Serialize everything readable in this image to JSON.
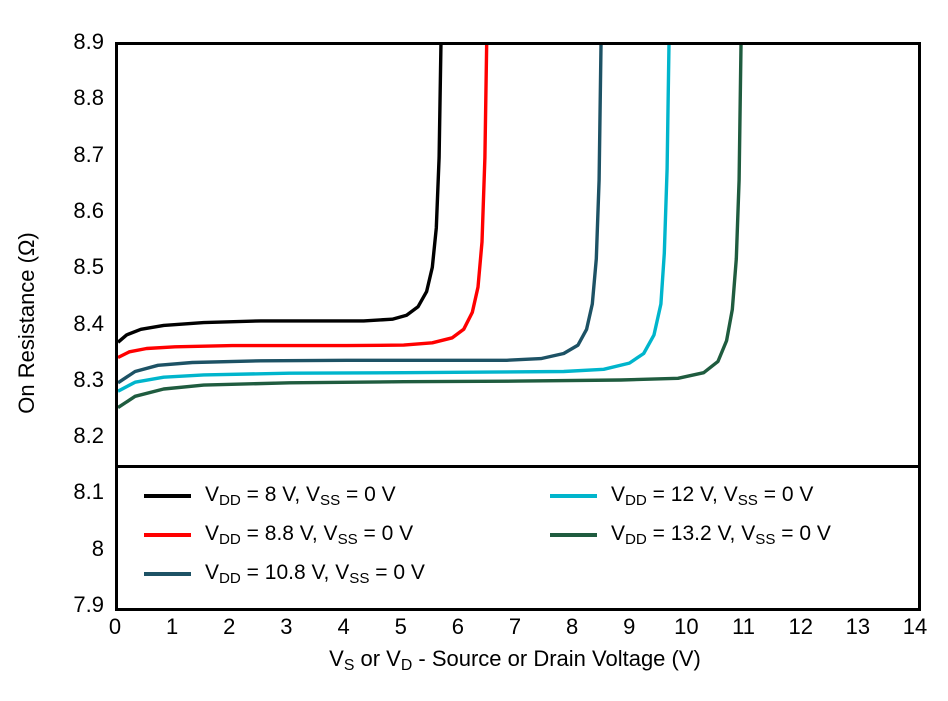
{
  "figure": {
    "background": "#ffffff"
  },
  "chart_data": {
    "type": "line",
    "title": "",
    "ylabel": "On Resistance (Ω)",
    "xlabel": "VS or VD - Source or Drain Voltage (V)",
    "xlabel_segments": [
      {
        "t": "V"
      },
      {
        "t": "S",
        "sub": true
      },
      {
        "t": " or V"
      },
      {
        "t": "D",
        "sub": true
      },
      {
        "t": " - Source or Drain Voltage (V)"
      }
    ],
    "xlim": [
      0,
      14
    ],
    "ylim": [
      7.9,
      8.9
    ],
    "grid": false,
    "legend_position": "bottom-inside",
    "xticks": [
      {
        "v": 0,
        "label": "0"
      },
      {
        "v": 1,
        "label": "1"
      },
      {
        "v": 2,
        "label": "2"
      },
      {
        "v": 3,
        "label": "3"
      },
      {
        "v": 4,
        "label": "4"
      },
      {
        "v": 5,
        "label": "5"
      },
      {
        "v": 6,
        "label": "6"
      },
      {
        "v": 7,
        "label": "7"
      },
      {
        "v": 8,
        "label": "8"
      },
      {
        "v": 9,
        "label": "9"
      },
      {
        "v": 10,
        "label": "10"
      },
      {
        "v": 11,
        "label": "11"
      },
      {
        "v": 12,
        "label": "12"
      },
      {
        "v": 13,
        "label": "13"
      },
      {
        "v": 14,
        "label": "14"
      }
    ],
    "yticks": [
      {
        "v": 7.9,
        "label": "7.9"
      },
      {
        "v": 8.0,
        "label": "8"
      },
      {
        "v": 8.1,
        "label": "8.1"
      },
      {
        "v": 8.2,
        "label": "8.2"
      },
      {
        "v": 8.3,
        "label": "8.3"
      },
      {
        "v": 8.4,
        "label": "8.4"
      },
      {
        "v": 8.5,
        "label": "8.5"
      },
      {
        "v": 8.6,
        "label": "8.6"
      },
      {
        "v": 8.7,
        "label": "8.7"
      },
      {
        "v": 8.8,
        "label": "8.8"
      },
      {
        "v": 8.9,
        "label": "8.9"
      }
    ],
    "series": [
      {
        "id": "vdd-8",
        "label": "VDD = 8 V, VSS = 0 V",
        "label_segments": [
          {
            "t": "V"
          },
          {
            "t": "DD",
            "sub": true
          },
          {
            "t": " = 8 V, V"
          },
          {
            "t": "SS",
            "sub": true
          },
          {
            "t": " = 0 V"
          }
        ],
        "color": "#000000",
        "legend_column": 1,
        "points": [
          [
            0,
            8.372
          ],
          [
            0.15,
            8.385
          ],
          [
            0.4,
            8.395
          ],
          [
            0.8,
            8.402
          ],
          [
            1.5,
            8.407
          ],
          [
            2.5,
            8.41
          ],
          [
            3.5,
            8.41
          ],
          [
            4.3,
            8.41
          ],
          [
            4.8,
            8.413
          ],
          [
            5.05,
            8.42
          ],
          [
            5.25,
            8.435
          ],
          [
            5.4,
            8.462
          ],
          [
            5.5,
            8.505
          ],
          [
            5.57,
            8.575
          ],
          [
            5.62,
            8.7
          ],
          [
            5.66,
            8.95
          ]
        ]
      },
      {
        "id": "vdd-8p8",
        "label": "VDD = 8.8 V, VSS = 0 V",
        "label_segments": [
          {
            "t": "V"
          },
          {
            "t": "DD",
            "sub": true
          },
          {
            "t": " = 8.8 V, V"
          },
          {
            "t": "SS",
            "sub": true
          },
          {
            "t": " = 0 V"
          }
        ],
        "color": "#ff0000",
        "legend_column": 1,
        "points": [
          [
            0,
            8.345
          ],
          [
            0.2,
            8.355
          ],
          [
            0.5,
            8.361
          ],
          [
            1.0,
            8.364
          ],
          [
            2.0,
            8.366
          ],
          [
            3.0,
            8.366
          ],
          [
            4.0,
            8.366
          ],
          [
            5.0,
            8.367
          ],
          [
            5.5,
            8.371
          ],
          [
            5.85,
            8.38
          ],
          [
            6.05,
            8.395
          ],
          [
            6.2,
            8.425
          ],
          [
            6.3,
            8.47
          ],
          [
            6.37,
            8.55
          ],
          [
            6.42,
            8.7
          ],
          [
            6.46,
            8.95
          ]
        ]
      },
      {
        "id": "vdd-10p8",
        "label": "VDD = 10.8 V, VSS = 0 V",
        "label_segments": [
          {
            "t": "V"
          },
          {
            "t": "DD",
            "sub": true
          },
          {
            "t": " = 10.8 V, V"
          },
          {
            "t": "SS",
            "sub": true
          },
          {
            "t": " = 0 V"
          }
        ],
        "color": "#1d5265",
        "legend_column": 1,
        "points": [
          [
            0,
            8.3
          ],
          [
            0.3,
            8.32
          ],
          [
            0.7,
            8.331
          ],
          [
            1.3,
            8.336
          ],
          [
            2.5,
            8.339
          ],
          [
            4.0,
            8.34
          ],
          [
            5.5,
            8.34
          ],
          [
            6.8,
            8.34
          ],
          [
            7.4,
            8.343
          ],
          [
            7.8,
            8.352
          ],
          [
            8.05,
            8.367
          ],
          [
            8.2,
            8.395
          ],
          [
            8.3,
            8.44
          ],
          [
            8.37,
            8.52
          ],
          [
            8.42,
            8.66
          ],
          [
            8.46,
            8.95
          ]
        ]
      },
      {
        "id": "vdd-12",
        "label": "VDD = 12 V, VSS = 0 V",
        "label_segments": [
          {
            "t": "V"
          },
          {
            "t": "DD",
            "sub": true
          },
          {
            "t": " = 12 V, V"
          },
          {
            "t": "SS",
            "sub": true
          },
          {
            "t": " = 0 V"
          }
        ],
        "color": "#00b5cc",
        "legend_column": 2,
        "points": [
          [
            0,
            8.285
          ],
          [
            0.3,
            8.301
          ],
          [
            0.8,
            8.31
          ],
          [
            1.5,
            8.314
          ],
          [
            3.0,
            8.317
          ],
          [
            5.0,
            8.318
          ],
          [
            6.5,
            8.319
          ],
          [
            7.8,
            8.32
          ],
          [
            8.5,
            8.324
          ],
          [
            8.95,
            8.335
          ],
          [
            9.2,
            8.352
          ],
          [
            9.38,
            8.385
          ],
          [
            9.5,
            8.44
          ],
          [
            9.56,
            8.53
          ],
          [
            9.61,
            8.68
          ],
          [
            9.65,
            8.95
          ]
        ]
      },
      {
        "id": "vdd-13p2",
        "label": "VDD = 13.2 V, VSS = 0 V",
        "label_segments": [
          {
            "t": "V"
          },
          {
            "t": "DD",
            "sub": true
          },
          {
            "t": " = 13.2 V, V"
          },
          {
            "t": "SS",
            "sub": true
          },
          {
            "t": " = 0 V"
          }
        ],
        "color": "#1f5c3f",
        "legend_column": 2,
        "points": [
          [
            0,
            8.256
          ],
          [
            0.3,
            8.276
          ],
          [
            0.8,
            8.289
          ],
          [
            1.5,
            8.296
          ],
          [
            3.0,
            8.3
          ],
          [
            5.0,
            8.302
          ],
          [
            7.0,
            8.303
          ],
          [
            8.8,
            8.305
          ],
          [
            9.8,
            8.308
          ],
          [
            10.25,
            8.318
          ],
          [
            10.5,
            8.338
          ],
          [
            10.65,
            8.375
          ],
          [
            10.75,
            8.43
          ],
          [
            10.82,
            8.52
          ],
          [
            10.87,
            8.66
          ],
          [
            10.91,
            8.95
          ]
        ]
      }
    ]
  }
}
